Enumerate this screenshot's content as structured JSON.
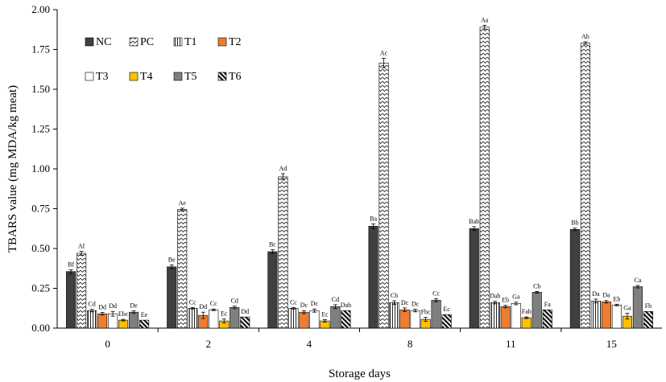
{
  "chart_data": {
    "type": "bar",
    "ylabel": "TBARS value  (mg MDA/kg meat)",
    "xlabel": "Storage days",
    "categories": [
      "0",
      "2",
      "4",
      "8",
      "11",
      "15"
    ],
    "ylim": [
      0,
      2
    ],
    "yticks": [
      "0.00",
      "0.25",
      "0.50",
      "0.75",
      "1.00",
      "1.25",
      "1.50",
      "1.75",
      "2.00"
    ],
    "grid": false,
    "legend_position": "top-left",
    "series": [
      {
        "name": "NC",
        "fill": "dark",
        "color": "#404040",
        "values": [
          0.355,
          0.385,
          0.48,
          0.64,
          0.625,
          0.62
        ],
        "errors": [
          0.012,
          0.012,
          0.012,
          0.015,
          0.012,
          0.008
        ],
        "labels": [
          "Bf",
          "Be",
          "Bc",
          "Ba",
          "Bab",
          "Bb"
        ]
      },
      {
        "name": "PC",
        "fill": "zigzag",
        "color": "#ffffff",
        "values": [
          0.47,
          0.745,
          0.95,
          1.665,
          1.89,
          1.79
        ],
        "errors": [
          0.012,
          0.008,
          0.02,
          0.03,
          0.012,
          0.008
        ],
        "labels": [
          "Af",
          "Ae",
          "Ad",
          "Ac",
          "Aa",
          "Ab"
        ]
      },
      {
        "name": "T1",
        "fill": "vlines",
        "color": "#ffffff",
        "values": [
          0.11,
          0.125,
          0.125,
          0.16,
          0.16,
          0.17
        ],
        "errors": [
          0.008,
          0.005,
          0.005,
          0.012,
          0.008,
          0.012
        ],
        "labels": [
          "Cd",
          "Cc",
          "Cc",
          "Cb",
          "Dab",
          "Da"
        ]
      },
      {
        "name": "T2",
        "fill": "solid",
        "color": "#ed7d31",
        "values": [
          0.09,
          0.08,
          0.1,
          0.115,
          0.135,
          0.165
        ],
        "errors": [
          0.008,
          0.02,
          0.01,
          0.012,
          0.008,
          0.008
        ],
        "labels": [
          "Dd",
          "Dd",
          "Dc",
          "Dc",
          "Eb",
          "Da"
        ]
      },
      {
        "name": "T3",
        "fill": "solid",
        "color": "#ffffff",
        "values": [
          0.09,
          0.115,
          0.11,
          0.11,
          0.155,
          0.145
        ],
        "errors": [
          0.015,
          0.005,
          0.01,
          0.008,
          0.008,
          0.005
        ],
        "labels": [
          "Dd",
          "Cc",
          "Dc",
          "Dc",
          "Ga",
          "Eb"
        ]
      },
      {
        "name": "T4",
        "fill": "solid",
        "color": "#ffc000",
        "values": [
          0.05,
          0.045,
          0.045,
          0.055,
          0.065,
          0.075
        ],
        "errors": [
          0.005,
          0.012,
          0.008,
          0.012,
          0.005,
          0.018
        ],
        "labels": [
          "Ebc",
          "Ec",
          "Ec",
          "Fbc",
          "Fab",
          "Ga"
        ]
      },
      {
        "name": "T5",
        "fill": "solid",
        "color": "#7f7f7f",
        "values": [
          0.1,
          0.13,
          0.135,
          0.175,
          0.225,
          0.26
        ],
        "errors": [
          0.008,
          0.008,
          0.012,
          0.01,
          0.005,
          0.008
        ],
        "labels": [
          "De",
          "Cd",
          "Cd",
          "Cc",
          "Cb",
          "Ca"
        ]
      },
      {
        "name": "T6",
        "fill": "dlines",
        "color": "#ffffff",
        "values": [
          0.05,
          0.07,
          0.11,
          0.085,
          0.115,
          0.105
        ],
        "errors": [
          0,
          0,
          0,
          0,
          0,
          0
        ],
        "labels": [
          "Ee",
          "Dd",
          "Dab",
          "Ec",
          "Fa",
          "Fb"
        ]
      }
    ]
  }
}
